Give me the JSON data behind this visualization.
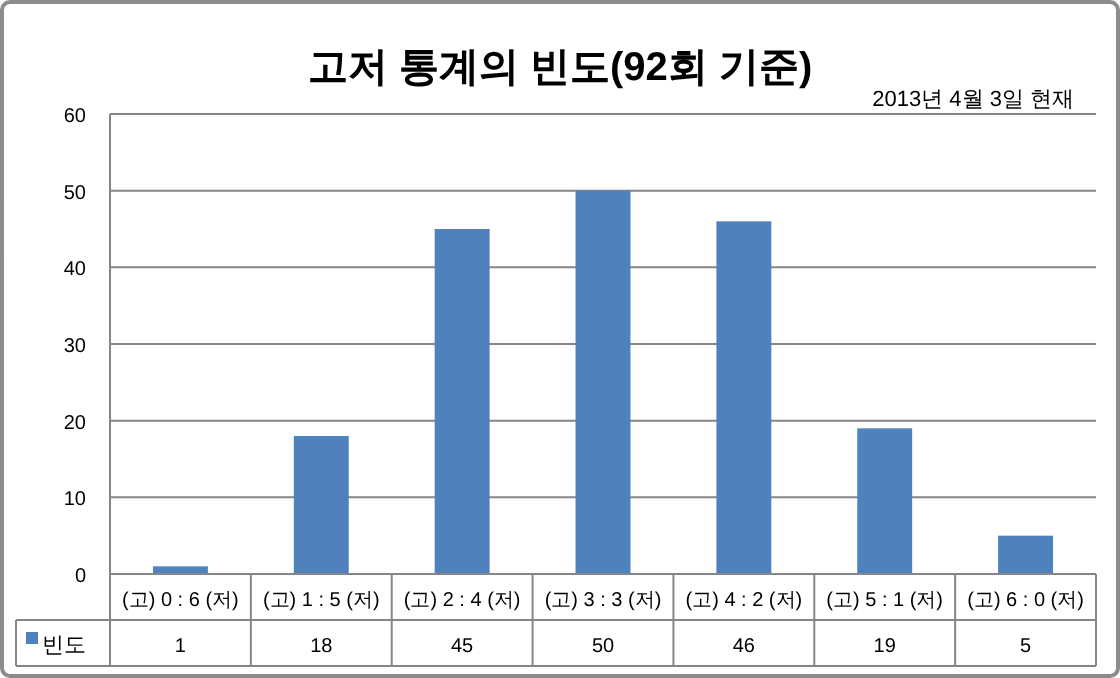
{
  "chart_data": {
    "type": "bar",
    "title": "고저 통계의 빈도(92회 기준)",
    "annotations": [
      "2013년 4월 3일 현재"
    ],
    "categories": [
      "(고) 0 : 6 (저)",
      "(고) 1 : 5 (저)",
      "(고) 2 : 4 (저)",
      "(고) 3 : 3 (저)",
      "(고) 4 : 2 (저)",
      "(고) 5 : 1 (저)",
      "(고) 6 : 0 (저)"
    ],
    "series": [
      {
        "name": "빈도",
        "color": "#4f81bd",
        "values": [
          1,
          18,
          45,
          50,
          46,
          19,
          5
        ]
      }
    ],
    "ylim": [
      0,
      60
    ],
    "yticks": [
      0,
      10,
      20,
      30,
      40,
      50,
      60
    ],
    "grid": "y",
    "data_labels": true
  }
}
